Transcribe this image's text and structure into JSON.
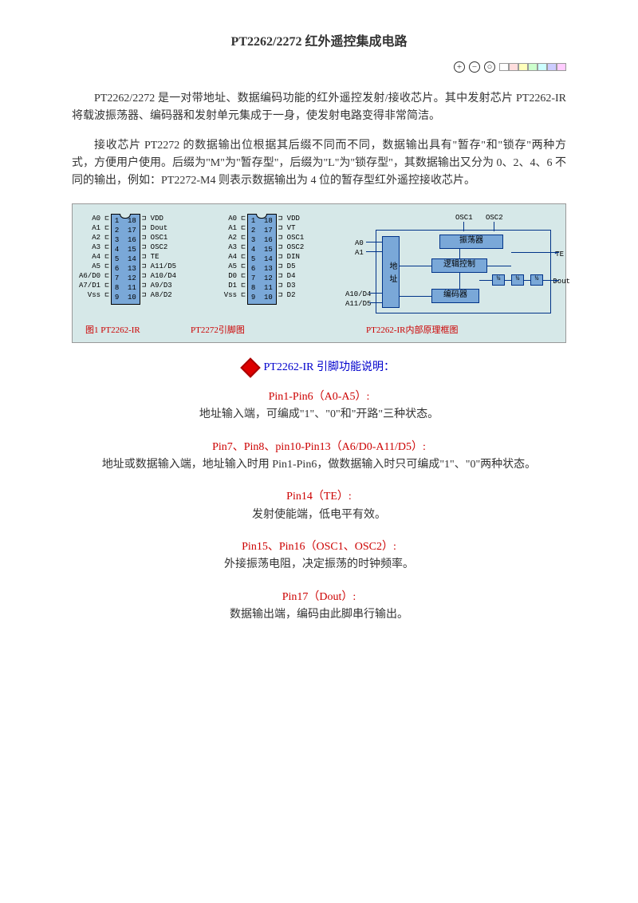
{
  "title": "PT2262/2272 红外遥控集成电路",
  "para1": "PT2262/2272 是一对带地址、数据编码功能的红外遥控发射/接收芯片。其中发射芯片 PT2262-IR 将载波振荡器、编码器和发射单元集成于一身，使发射电路变得非常简洁。",
  "para2": "接收芯片 PT2272 的数据输出位根据其后缀不同而不同，数据输出具有\"暂存\"和\"锁存\"两种方式，方便用户使用。后缀为\"M\"为\"暂存型\"，后缀为\"L\"为\"锁存型\"，其数据输出又分为 0、2、4、6 不同的输出，例如：PT2272-M4 则表示数据输出为 4 位的暂存型红外遥控接收芯片。",
  "chip1": {
    "left": [
      "A0",
      "A1",
      "A2",
      "A3",
      "A4",
      "A5",
      "A6/D0",
      "A7/D1",
      "Vss"
    ],
    "leftPins": [
      "1",
      "2",
      "3",
      "4",
      "5",
      "6",
      "7",
      "8",
      "9"
    ],
    "rightPins": [
      "18",
      "17",
      "16",
      "15",
      "14",
      "13",
      "12",
      "11",
      "10"
    ],
    "right": [
      "VDD",
      "Dout",
      "OSC1",
      "OSC2",
      "TE",
      "A11/D5",
      "A10/D4",
      "A9/D3",
      "A8/D2"
    ]
  },
  "chip2": {
    "left": [
      "A0",
      "A1",
      "A2",
      "A3",
      "A4",
      "A5",
      "D0",
      "D1",
      "Vss"
    ],
    "leftPins": [
      "1",
      "2",
      "3",
      "4",
      "5",
      "6",
      "7",
      "8",
      "9"
    ],
    "rightPins": [
      "18",
      "17",
      "16",
      "15",
      "14",
      "13",
      "12",
      "11",
      "10"
    ],
    "right": [
      "VDD",
      "VT",
      "OSC1",
      "OSC2",
      "DIN",
      "D5",
      "D4",
      "D3",
      "D2"
    ]
  },
  "blockDiagram": {
    "topLabels": [
      "OSC1",
      "OSC2"
    ],
    "boxes": {
      "addr": "地\n址",
      "osc": "振荡器",
      "logic": "逻辑控制",
      "encoder": "编码器",
      "n1": "½",
      "n2": "½",
      "n3": "½"
    },
    "leftLabels": [
      "A0",
      "A1",
      "A10/D4",
      "A11/D5"
    ],
    "rightLabels": [
      "TE",
      "Dout"
    ]
  },
  "caption1": "图1 PT2262-IR",
  "caption2": "PT2272引脚图",
  "caption3": "PT2262-IR内部原理框图",
  "sectionTitle": "PT2262-IR 引脚功能说明：",
  "pins": [
    {
      "title": "Pin1-Pin6（A0-A5）:",
      "desc": "地址输入端，可编成\"1\"、\"0\"和\"开路\"三种状态。"
    },
    {
      "title": "Pin7、Pin8、pin10-Pin13（A6/D0-A11/D5）:",
      "desc": "地址或数据输入端，地址输入时用 Pin1-Pin6，做数据输入时只可编成\"1\"、\"0\"两种状态。"
    },
    {
      "title": "Pin14（TE）:",
      "desc": "发射使能端，低电平有效。"
    },
    {
      "title": "Pin15、Pin16（OSC1、OSC2）:",
      "desc": "外接振荡电阻，决定振荡的时钟频率。"
    },
    {
      "title": "Pin17（Dout）:",
      "desc": "数据输出端，编码由此脚串行输出。"
    }
  ],
  "colors": [
    "#ffffff",
    "#ffcccc",
    "#ffff99",
    "#ccffcc",
    "#ccffff",
    "#ccccff",
    "#ffccff"
  ]
}
